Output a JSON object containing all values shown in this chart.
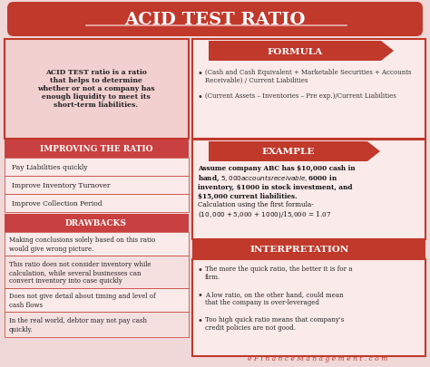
{
  "title": "ACID TEST RATIO",
  "title_bg": "#c0392b",
  "title_color": "#ffffff",
  "bg_color": "#f0d8d8",
  "red_dark": "#c0392b",
  "red_medium": "#c94040",
  "red_light": "#e8b4b4",
  "pink_light": "#faeaea",
  "pink_box": "#f2d0d0",
  "definition_text": "ACID TEST ratio is a ratio\nthat helps to determine\nwhether or not a company has\nenough liquidity to meet its\nshort-term liabilities.",
  "formula_title": "FORMULA",
  "formula_bullets": [
    "(Cash and Cash Equivalent + Marketable Securities + Accounts\nReceivable) / Current Liabilities",
    "(Current Assets – Inventories – Pre exp.)/Current Liabilities"
  ],
  "improving_title": "IMPROVING THE RATIO",
  "improving_items": [
    "Pay Liabilities quickly",
    "Improve Inventory Turnover",
    "Improve Collection Period"
  ],
  "example_title": "EXAMPLE",
  "example_text": "Assume company ABC has $10,000 cash in\nhand, $5,000 accounts receivable, $6000 in\ninventory, $1000 in stock investment, and\n$15,000 current liabilities.",
  "example_calc": "Calculation using the first formula-\n($10,000 + $5,000 + $1000)/ $15,000 = 1.07",
  "drawbacks_title": "DRAWBACKS",
  "drawbacks_items": [
    "Making conclusions solely based on this ratio\nwould give wrong picture.",
    "This ratio does not consider inventory while\ncalculation, while several businesses can\nconvert inventory into case quickly",
    "Does not give detail about timing and level of\ncash flows",
    "In the real world, debtor may not pay cash\nquickly."
  ],
  "interpretation_title": "INTERPRETATION",
  "interpretation_bullets": [
    "The more the quick ratio, the better it is for a\nfirm.",
    "A low ratio, on the other hand, could mean\nthat the company is over-leveraged",
    "Too high quick ratio means that company's\ncredit policies are not good."
  ],
  "footer": "e F i n a n c e M a n a g e m e n t . c o m"
}
